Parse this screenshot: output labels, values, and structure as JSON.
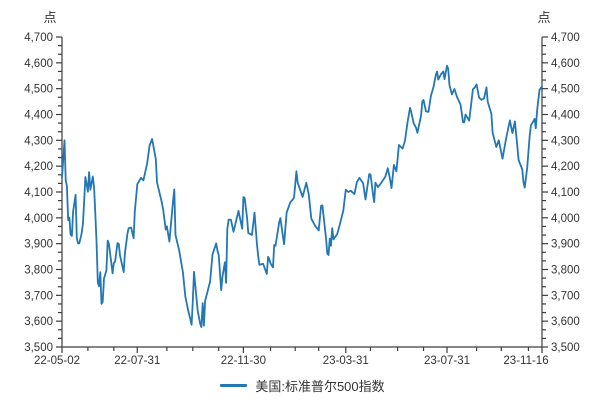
{
  "units_label": "点",
  "legend": {
    "label": "美国:标准普尔500指数"
  },
  "colors": {
    "line": "#2277b4",
    "axis": "#3d3d3d",
    "text": "#333333"
  },
  "chart_data": {
    "type": "line",
    "title": "",
    "unit": "点",
    "grid": false,
    "legend_position": "bottom-center",
    "y_axis": {
      "min": 3500,
      "max": 4700,
      "major_step": 100,
      "minor_divisions": 3,
      "format": "thousands-comma",
      "mirrored_right": true
    },
    "x_axis": {
      "kind": "trading-day-index",
      "range": [
        0,
        389
      ],
      "major_ticks": [
        {
          "t": 0,
          "label": "22-05-02"
        },
        {
          "t": 61,
          "label": "22-07-31"
        },
        {
          "t": 147,
          "label": "22-11-30"
        },
        {
          "t": 230,
          "label": "23-03-31"
        },
        {
          "t": 312,
          "label": "23-07-31"
        },
        {
          "t": 389,
          "label": "23-11-16"
        }
      ],
      "minor_ticks": [
        21,
        42,
        85,
        106,
        127,
        169,
        189,
        208,
        250,
        272,
        293,
        336,
        356,
        378
      ]
    },
    "series": [
      {
        "name": "美国:标准普尔500指数",
        "color": "#2277b4",
        "points": [
          [
            0,
            4155
          ],
          [
            2,
            4300
          ],
          [
            3,
            4147
          ],
          [
            4,
            4123
          ],
          [
            5,
            3991
          ],
          [
            6,
            4001
          ],
          [
            7,
            3935
          ],
          [
            8,
            3930
          ],
          [
            9,
            4024
          ],
          [
            11,
            4089
          ],
          [
            12,
            3924
          ],
          [
            13,
            3901
          ],
          [
            14,
            3901
          ],
          [
            16,
            3941
          ],
          [
            17,
            3979
          ],
          [
            19,
            4158
          ],
          [
            21,
            4101
          ],
          [
            22,
            4177
          ],
          [
            23,
            4109
          ],
          [
            25,
            4160
          ],
          [
            26,
            4116
          ],
          [
            27,
            4018
          ],
          [
            28,
            3901
          ],
          [
            29,
            3750
          ],
          [
            30,
            3735
          ],
          [
            31,
            3790
          ],
          [
            32,
            3667
          ],
          [
            33,
            3675
          ],
          [
            34,
            3765
          ],
          [
            36,
            3796
          ],
          [
            37,
            3912
          ],
          [
            38,
            3900
          ],
          [
            41,
            3785
          ],
          [
            42,
            3825
          ],
          [
            43,
            3831
          ],
          [
            45,
            3902
          ],
          [
            46,
            3899
          ],
          [
            47,
            3854
          ],
          [
            50,
            3790
          ],
          [
            51,
            3863
          ],
          [
            53,
            3937
          ],
          [
            54,
            3960
          ],
          [
            56,
            3962
          ],
          [
            58,
            3921
          ],
          [
            59,
            4024
          ],
          [
            61,
            4130
          ],
          [
            64,
            4155
          ],
          [
            66,
            4145
          ],
          [
            69,
            4210
          ],
          [
            71,
            4280
          ],
          [
            73,
            4305
          ],
          [
            76,
            4228
          ],
          [
            77,
            4138
          ],
          [
            81,
            4058
          ],
          [
            82,
            4031
          ],
          [
            84,
            3955
          ],
          [
            85,
            3967
          ],
          [
            87,
            3908
          ],
          [
            90,
            4067
          ],
          [
            91,
            4110
          ],
          [
            92,
            3933
          ],
          [
            95,
            3873
          ],
          [
            98,
            3790
          ],
          [
            100,
            3693
          ],
          [
            102,
            3647
          ],
          [
            105,
            3586
          ],
          [
            106,
            3678
          ],
          [
            107,
            3791
          ],
          [
            110,
            3640
          ],
          [
            112,
            3589
          ],
          [
            113,
            3577
          ],
          [
            114,
            3670
          ],
          [
            115,
            3583
          ],
          [
            116,
            3678
          ],
          [
            120,
            3753
          ],
          [
            122,
            3859
          ],
          [
            125,
            3901
          ],
          [
            126,
            3872
          ],
          [
            127,
            3856
          ],
          [
            129,
            3720
          ],
          [
            130,
            3771
          ],
          [
            132,
            3828
          ],
          [
            133,
            3748
          ],
          [
            134,
            3956
          ],
          [
            135,
            3993
          ],
          [
            137,
            3992
          ],
          [
            139,
            3946
          ],
          [
            143,
            4027
          ],
          [
            146,
            3958
          ],
          [
            147,
            4080
          ],
          [
            148,
            4077
          ],
          [
            150,
            3999
          ],
          [
            151,
            3941
          ],
          [
            154,
            3934
          ],
          [
            156,
            4020
          ],
          [
            158,
            3896
          ],
          [
            159,
            3852
          ],
          [
            160,
            3818
          ],
          [
            163,
            3822
          ],
          [
            166,
            3783
          ],
          [
            167,
            3849
          ],
          [
            168,
            3840
          ],
          [
            169,
            3824
          ],
          [
            171,
            3808
          ],
          [
            172,
            3895
          ],
          [
            173,
            3892
          ],
          [
            176,
            3983
          ],
          [
            177,
            3999
          ],
          [
            179,
            3929
          ],
          [
            180,
            3898
          ],
          [
            182,
            4020
          ],
          [
            185,
            4060
          ],
          [
            188,
            4077
          ],
          [
            190,
            4180
          ],
          [
            191,
            4136
          ],
          [
            195,
            4081
          ],
          [
            198,
            4136
          ],
          [
            200,
            4090
          ],
          [
            202,
            3997
          ],
          [
            205,
            3970
          ],
          [
            208,
            3951
          ],
          [
            210,
            4046
          ],
          [
            211,
            4048
          ],
          [
            214,
            3918
          ],
          [
            215,
            3862
          ],
          [
            216,
            3856
          ],
          [
            217,
            3920
          ],
          [
            218,
            3892
          ],
          [
            219,
            3960
          ],
          [
            220,
            3917
          ],
          [
            223,
            3937
          ],
          [
            225,
            3971
          ],
          [
            228,
            4028
          ],
          [
            230,
            4109
          ],
          [
            232,
            4100
          ],
          [
            234,
            4105
          ],
          [
            237,
            4092
          ],
          [
            239,
            4138
          ],
          [
            241,
            4155
          ],
          [
            244,
            4134
          ],
          [
            246,
            4071
          ],
          [
            249,
            4169
          ],
          [
            250,
            4168
          ],
          [
            252,
            4091
          ],
          [
            253,
            4061
          ],
          [
            254,
            4136
          ],
          [
            256,
            4119
          ],
          [
            258,
            4131
          ],
          [
            262,
            4159
          ],
          [
            264,
            4192
          ],
          [
            266,
            4146
          ],
          [
            267,
            4115
          ],
          [
            269,
            4205
          ],
          [
            271,
            4180
          ],
          [
            273,
            4282
          ],
          [
            276,
            4268
          ],
          [
            278,
            4299
          ],
          [
            280,
            4369
          ],
          [
            282,
            4426
          ],
          [
            283,
            4410
          ],
          [
            285,
            4366
          ],
          [
            287,
            4348
          ],
          [
            288,
            4329
          ],
          [
            291,
            4396
          ],
          [
            292,
            4450
          ],
          [
            293,
            4456
          ],
          [
            295,
            4412
          ],
          [
            297,
            4410
          ],
          [
            299,
            4472
          ],
          [
            301,
            4505
          ],
          [
            303,
            4555
          ],
          [
            304,
            4566
          ],
          [
            305,
            4535
          ],
          [
            307,
            4555
          ],
          [
            309,
            4567
          ],
          [
            310,
            4537
          ],
          [
            312,
            4589
          ],
          [
            313,
            4577
          ],
          [
            314,
            4513
          ],
          [
            316,
            4478
          ],
          [
            318,
            4499
          ],
          [
            320,
            4469
          ],
          [
            323,
            4438
          ],
          [
            325,
            4370
          ],
          [
            326,
            4370
          ],
          [
            327,
            4400
          ],
          [
            330,
            4376
          ],
          [
            333,
            4497
          ],
          [
            335,
            4508
          ],
          [
            336,
            4516
          ],
          [
            338,
            4465
          ],
          [
            340,
            4457
          ],
          [
            342,
            4462
          ],
          [
            344,
            4505
          ],
          [
            345,
            4450
          ],
          [
            348,
            4402
          ],
          [
            349,
            4330
          ],
          [
            352,
            4274
          ],
          [
            354,
            4300
          ],
          [
            357,
            4229
          ],
          [
            360,
            4309
          ],
          [
            363,
            4377
          ],
          [
            365,
            4328
          ],
          [
            367,
            4373
          ],
          [
            369,
            4278
          ],
          [
            370,
            4224
          ],
          [
            373,
            4187
          ],
          [
            374,
            4137
          ],
          [
            375,
            4117
          ],
          [
            377,
            4194
          ],
          [
            379,
            4318
          ],
          [
            380,
            4358
          ],
          [
            383,
            4383
          ],
          [
            384,
            4347
          ],
          [
            385,
            4415
          ],
          [
            387,
            4495
          ],
          [
            388,
            4503
          ],
          [
            389,
            4508
          ]
        ]
      }
    ]
  }
}
